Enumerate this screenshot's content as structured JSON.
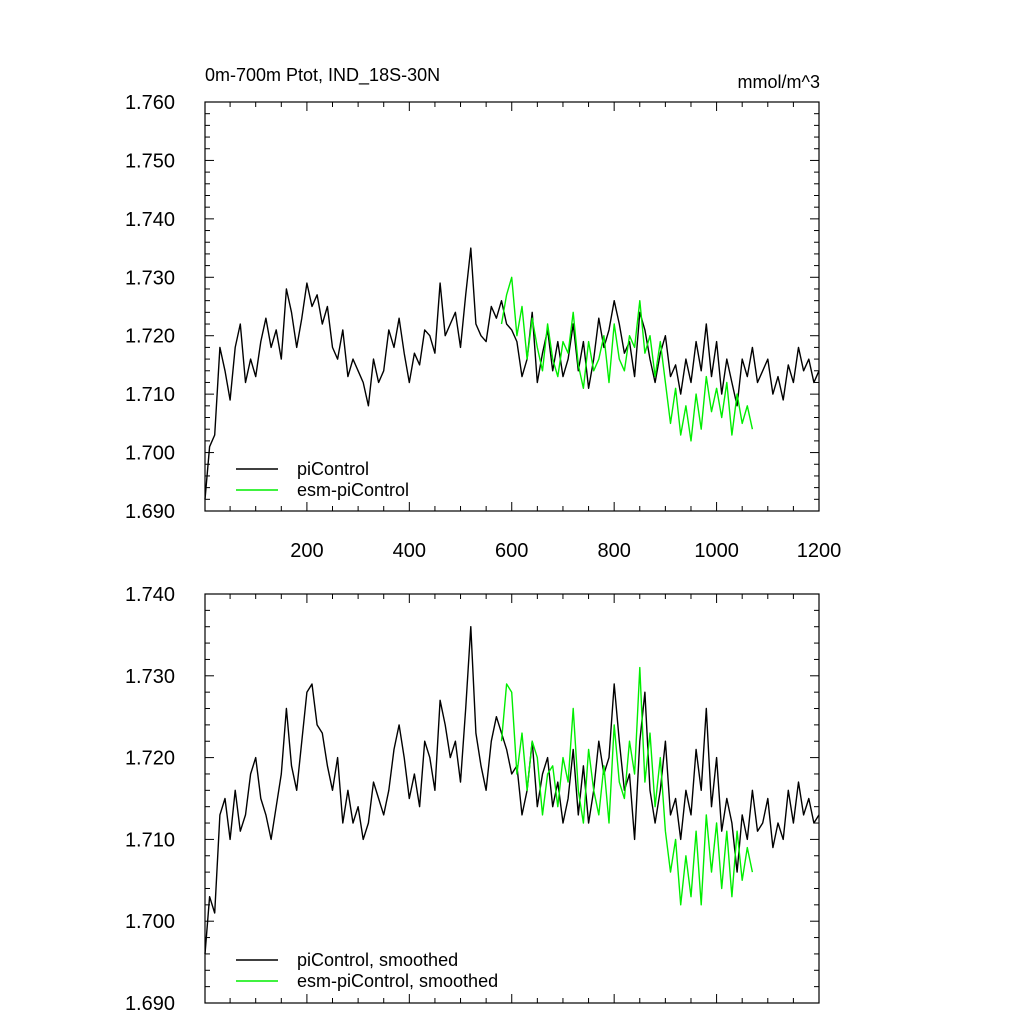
{
  "chart_data": [
    {
      "type": "line",
      "title": "0m-700m Ptot, IND_18S-30N",
      "units": "mmol/m^3",
      "xlim": [
        1,
        1200
      ],
      "ylim": [
        1.69,
        1.76
      ],
      "xticks": [
        200,
        400,
        600,
        800,
        1000,
        1200
      ],
      "xtick_labels": [
        "200",
        "400",
        "600",
        "800",
        "1000",
        "1200"
      ],
      "yticks": [
        1.69,
        1.7,
        1.71,
        1.72,
        1.73,
        1.74,
        1.75,
        1.76
      ],
      "ytick_labels": [
        "1.690",
        "1.700",
        "1.710",
        "1.720",
        "1.730",
        "1.740",
        "1.750",
        "1.760"
      ],
      "legend_position": "bottom-left",
      "series": [
        {
          "name": "piControl",
          "color": "#000000",
          "x": [
            1,
            10,
            20,
            30,
            40,
            50,
            60,
            70,
            80,
            90,
            100,
            110,
            120,
            130,
            140,
            150,
            160,
            170,
            180,
            190,
            200,
            210,
            220,
            230,
            240,
            250,
            260,
            270,
            280,
            290,
            300,
            310,
            320,
            330,
            340,
            350,
            360,
            370,
            380,
            390,
            400,
            410,
            420,
            430,
            440,
            450,
            460,
            470,
            480,
            490,
            500,
            510,
            520,
            530,
            540,
            550,
            560,
            570,
            580,
            590,
            600,
            610,
            620,
            630,
            640,
            650,
            660,
            670,
            680,
            690,
            700,
            710,
            720,
            730,
            740,
            750,
            760,
            770,
            780,
            790,
            800,
            810,
            820,
            830,
            840,
            850,
            860,
            870,
            880,
            890,
            900,
            910,
            920,
            930,
            940,
            950,
            960,
            970,
            980,
            990,
            1000,
            1010,
            1020,
            1030,
            1040,
            1050,
            1060,
            1070,
            1080,
            1090,
            1100,
            1110,
            1120,
            1130,
            1140,
            1150,
            1160,
            1170,
            1180,
            1190,
            1200
          ],
          "values": [
            1.692,
            1.701,
            1.703,
            1.718,
            1.714,
            1.709,
            1.718,
            1.722,
            1.712,
            1.716,
            1.713,
            1.719,
            1.723,
            1.718,
            1.721,
            1.716,
            1.728,
            1.724,
            1.718,
            1.723,
            1.729,
            1.725,
            1.727,
            1.722,
            1.725,
            1.718,
            1.716,
            1.721,
            1.713,
            1.716,
            1.714,
            1.712,
            1.708,
            1.716,
            1.712,
            1.714,
            1.721,
            1.718,
            1.723,
            1.717,
            1.712,
            1.717,
            1.715,
            1.721,
            1.72,
            1.717,
            1.729,
            1.72,
            1.722,
            1.724,
            1.718,
            1.727,
            1.735,
            1.722,
            1.72,
            1.719,
            1.725,
            1.723,
            1.726,
            1.722,
            1.721,
            1.719,
            1.713,
            1.716,
            1.724,
            1.712,
            1.717,
            1.721,
            1.714,
            1.719,
            1.713,
            1.716,
            1.722,
            1.714,
            1.719,
            1.711,
            1.716,
            1.723,
            1.718,
            1.721,
            1.726,
            1.722,
            1.717,
            1.719,
            1.713,
            1.724,
            1.721,
            1.716,
            1.712,
            1.717,
            1.72,
            1.713,
            1.715,
            1.71,
            1.716,
            1.712,
            1.719,
            1.714,
            1.722,
            1.713,
            1.719,
            1.71,
            1.716,
            1.712,
            1.708,
            1.716,
            1.713,
            1.718,
            1.712,
            1.714,
            1.716,
            1.71,
            1.713,
            1.709,
            1.715,
            1.712,
            1.718,
            1.714,
            1.716,
            1.712,
            1.714
          ]
        },
        {
          "name": "esm-piControl",
          "color": "#00ee00",
          "x": [
            580,
            590,
            600,
            610,
            620,
            630,
            640,
            650,
            660,
            670,
            680,
            690,
            700,
            710,
            720,
            730,
            740,
            750,
            760,
            770,
            780,
            790,
            800,
            810,
            820,
            830,
            840,
            850,
            860,
            870,
            880,
            890,
            900,
            910,
            920,
            930,
            940,
            950,
            960,
            970,
            980,
            990,
            1000,
            1010,
            1020,
            1030,
            1040,
            1050,
            1060,
            1070
          ],
          "values": [
            1.722,
            1.727,
            1.73,
            1.72,
            1.725,
            1.716,
            1.723,
            1.718,
            1.714,
            1.722,
            1.716,
            1.713,
            1.719,
            1.717,
            1.724,
            1.715,
            1.711,
            1.719,
            1.714,
            1.716,
            1.72,
            1.712,
            1.722,
            1.716,
            1.714,
            1.72,
            1.718,
            1.726,
            1.717,
            1.72,
            1.713,
            1.719,
            1.712,
            1.705,
            1.711,
            1.703,
            1.708,
            1.702,
            1.71,
            1.704,
            1.713,
            1.707,
            1.711,
            1.706,
            1.712,
            1.703,
            1.71,
            1.705,
            1.708,
            1.704
          ]
        }
      ]
    },
    {
      "type": "line",
      "xlim": [
        1,
        1200
      ],
      "ylim": [
        1.69,
        1.74
      ],
      "yticks": [
        1.69,
        1.7,
        1.71,
        1.72,
        1.73,
        1.74
      ],
      "ytick_labels": [
        "1.690",
        "1.700",
        "1.710",
        "1.720",
        "1.730",
        "1.740"
      ],
      "legend_position": "bottom-left",
      "series": [
        {
          "name": "piControl, smoothed",
          "color": "#000000",
          "x": [
            1,
            10,
            20,
            30,
            40,
            50,
            60,
            70,
            80,
            90,
            100,
            110,
            120,
            130,
            140,
            150,
            160,
            170,
            180,
            190,
            200,
            210,
            220,
            230,
            240,
            250,
            260,
            270,
            280,
            290,
            300,
            310,
            320,
            330,
            340,
            350,
            360,
            370,
            380,
            390,
            400,
            410,
            420,
            430,
            440,
            450,
            460,
            470,
            480,
            490,
            500,
            510,
            520,
            530,
            540,
            550,
            560,
            570,
            580,
            590,
            600,
            610,
            620,
            630,
            640,
            650,
            660,
            670,
            680,
            690,
            700,
            710,
            720,
            730,
            740,
            750,
            760,
            770,
            780,
            790,
            800,
            810,
            820,
            830,
            840,
            850,
            860,
            870,
            880,
            890,
            900,
            910,
            920,
            930,
            940,
            950,
            960,
            970,
            980,
            990,
            1000,
            1010,
            1020,
            1030,
            1040,
            1050,
            1060,
            1070,
            1080,
            1090,
            1100,
            1110,
            1120,
            1130,
            1140,
            1150,
            1160,
            1170,
            1180,
            1190,
            1200
          ],
          "values": [
            1.696,
            1.703,
            1.701,
            1.713,
            1.715,
            1.71,
            1.716,
            1.711,
            1.713,
            1.718,
            1.72,
            1.715,
            1.713,
            1.71,
            1.714,
            1.718,
            1.726,
            1.719,
            1.716,
            1.722,
            1.728,
            1.729,
            1.724,
            1.723,
            1.719,
            1.716,
            1.72,
            1.712,
            1.716,
            1.712,
            1.714,
            1.71,
            1.712,
            1.717,
            1.715,
            1.713,
            1.716,
            1.721,
            1.724,
            1.72,
            1.715,
            1.718,
            1.714,
            1.722,
            1.72,
            1.716,
            1.727,
            1.724,
            1.72,
            1.722,
            1.717,
            1.726,
            1.736,
            1.723,
            1.719,
            1.716,
            1.722,
            1.725,
            1.723,
            1.721,
            1.718,
            1.719,
            1.713,
            1.716,
            1.722,
            1.714,
            1.718,
            1.72,
            1.714,
            1.717,
            1.712,
            1.715,
            1.721,
            1.713,
            1.719,
            1.712,
            1.716,
            1.722,
            1.718,
            1.72,
            1.729,
            1.722,
            1.716,
            1.718,
            1.71,
            1.722,
            1.728,
            1.716,
            1.712,
            1.716,
            1.722,
            1.713,
            1.715,
            1.71,
            1.716,
            1.713,
            1.721,
            1.716,
            1.726,
            1.714,
            1.72,
            1.711,
            1.715,
            1.712,
            1.706,
            1.713,
            1.71,
            1.716,
            1.711,
            1.712,
            1.715,
            1.709,
            1.712,
            1.71,
            1.716,
            1.712,
            1.717,
            1.713,
            1.715,
            1.712,
            1.713
          ]
        },
        {
          "name": "esm-piControl, smoothed",
          "color": "#00ee00",
          "x": [
            580,
            590,
            600,
            610,
            620,
            630,
            640,
            650,
            660,
            670,
            680,
            690,
            700,
            710,
            720,
            730,
            740,
            750,
            760,
            770,
            780,
            790,
            800,
            810,
            820,
            830,
            840,
            850,
            860,
            870,
            880,
            890,
            900,
            910,
            920,
            930,
            940,
            950,
            960,
            970,
            980,
            990,
            1000,
            1010,
            1020,
            1030,
            1040,
            1050,
            1060,
            1070
          ],
          "values": [
            1.722,
            1.729,
            1.728,
            1.718,
            1.723,
            1.716,
            1.722,
            1.72,
            1.713,
            1.718,
            1.719,
            1.714,
            1.72,
            1.717,
            1.726,
            1.716,
            1.712,
            1.721,
            1.716,
            1.713,
            1.719,
            1.712,
            1.724,
            1.717,
            1.715,
            1.722,
            1.718,
            1.731,
            1.717,
            1.723,
            1.714,
            1.72,
            1.711,
            1.706,
            1.71,
            1.702,
            1.708,
            1.703,
            1.711,
            1.702,
            1.713,
            1.706,
            1.712,
            1.704,
            1.711,
            1.703,
            1.711,
            1.705,
            1.709,
            1.706
          ]
        }
      ]
    }
  ]
}
